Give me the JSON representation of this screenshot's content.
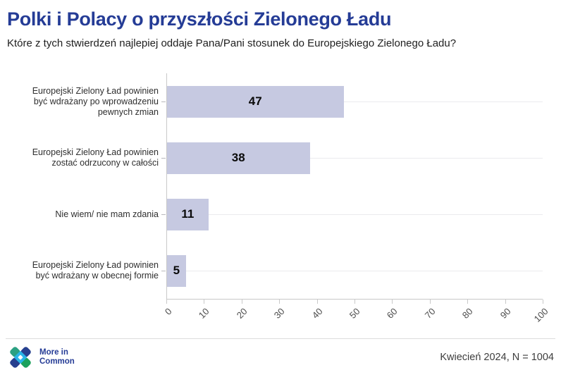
{
  "header": {
    "title": "Polki i Polacy o przyszłości Zielonego Ładu",
    "subtitle": "Które z tych stwierdzeń najlepiej oddaje Pana/Pani stosunek do Europejskiego Zielonego Ładu?"
  },
  "chart_data": {
    "type": "bar",
    "orientation": "horizontal",
    "title": "Polki i Polacy o przyszłości Zielonego Ładu",
    "subtitle": "Które z tych stwierdzeń najlepiej oddaje Pana/Pani stosunek do Europejskiego Zielonego Ładu?",
    "categories": [
      "Europejski Zielony Ład powinien\nbyć wdrażany po wprowadzeniu\npewnych zmian",
      "Europejski Zielony Ład powinien\nzostać odrzucony w całości",
      "Nie wiem/ nie mam zdania",
      "Europejski Zielony Ład powinien\nbyć wdrażany w obecnej formie"
    ],
    "values": [
      47,
      38,
      11,
      5
    ],
    "xlim": [
      0,
      100
    ],
    "xticks": [
      0,
      10,
      20,
      30,
      40,
      50,
      60,
      70,
      80,
      90,
      100
    ],
    "grid": true,
    "bar_color": "#c6c9e1",
    "value_color": "#0a0a0a"
  },
  "footer": {
    "logo": {
      "line1": "More in",
      "line2": "Common"
    },
    "note": "Kwiecień 2024, N = 1004"
  },
  "colors": {
    "title_navy": "#253c96",
    "logo_navy": "#253c96",
    "logo_teal": "#2ba183",
    "logo_green": "#1ca15c",
    "logo_darkblue": "#27408f",
    "logo_cyan": "#29b5e8",
    "logo_white": "#ffffff"
  }
}
